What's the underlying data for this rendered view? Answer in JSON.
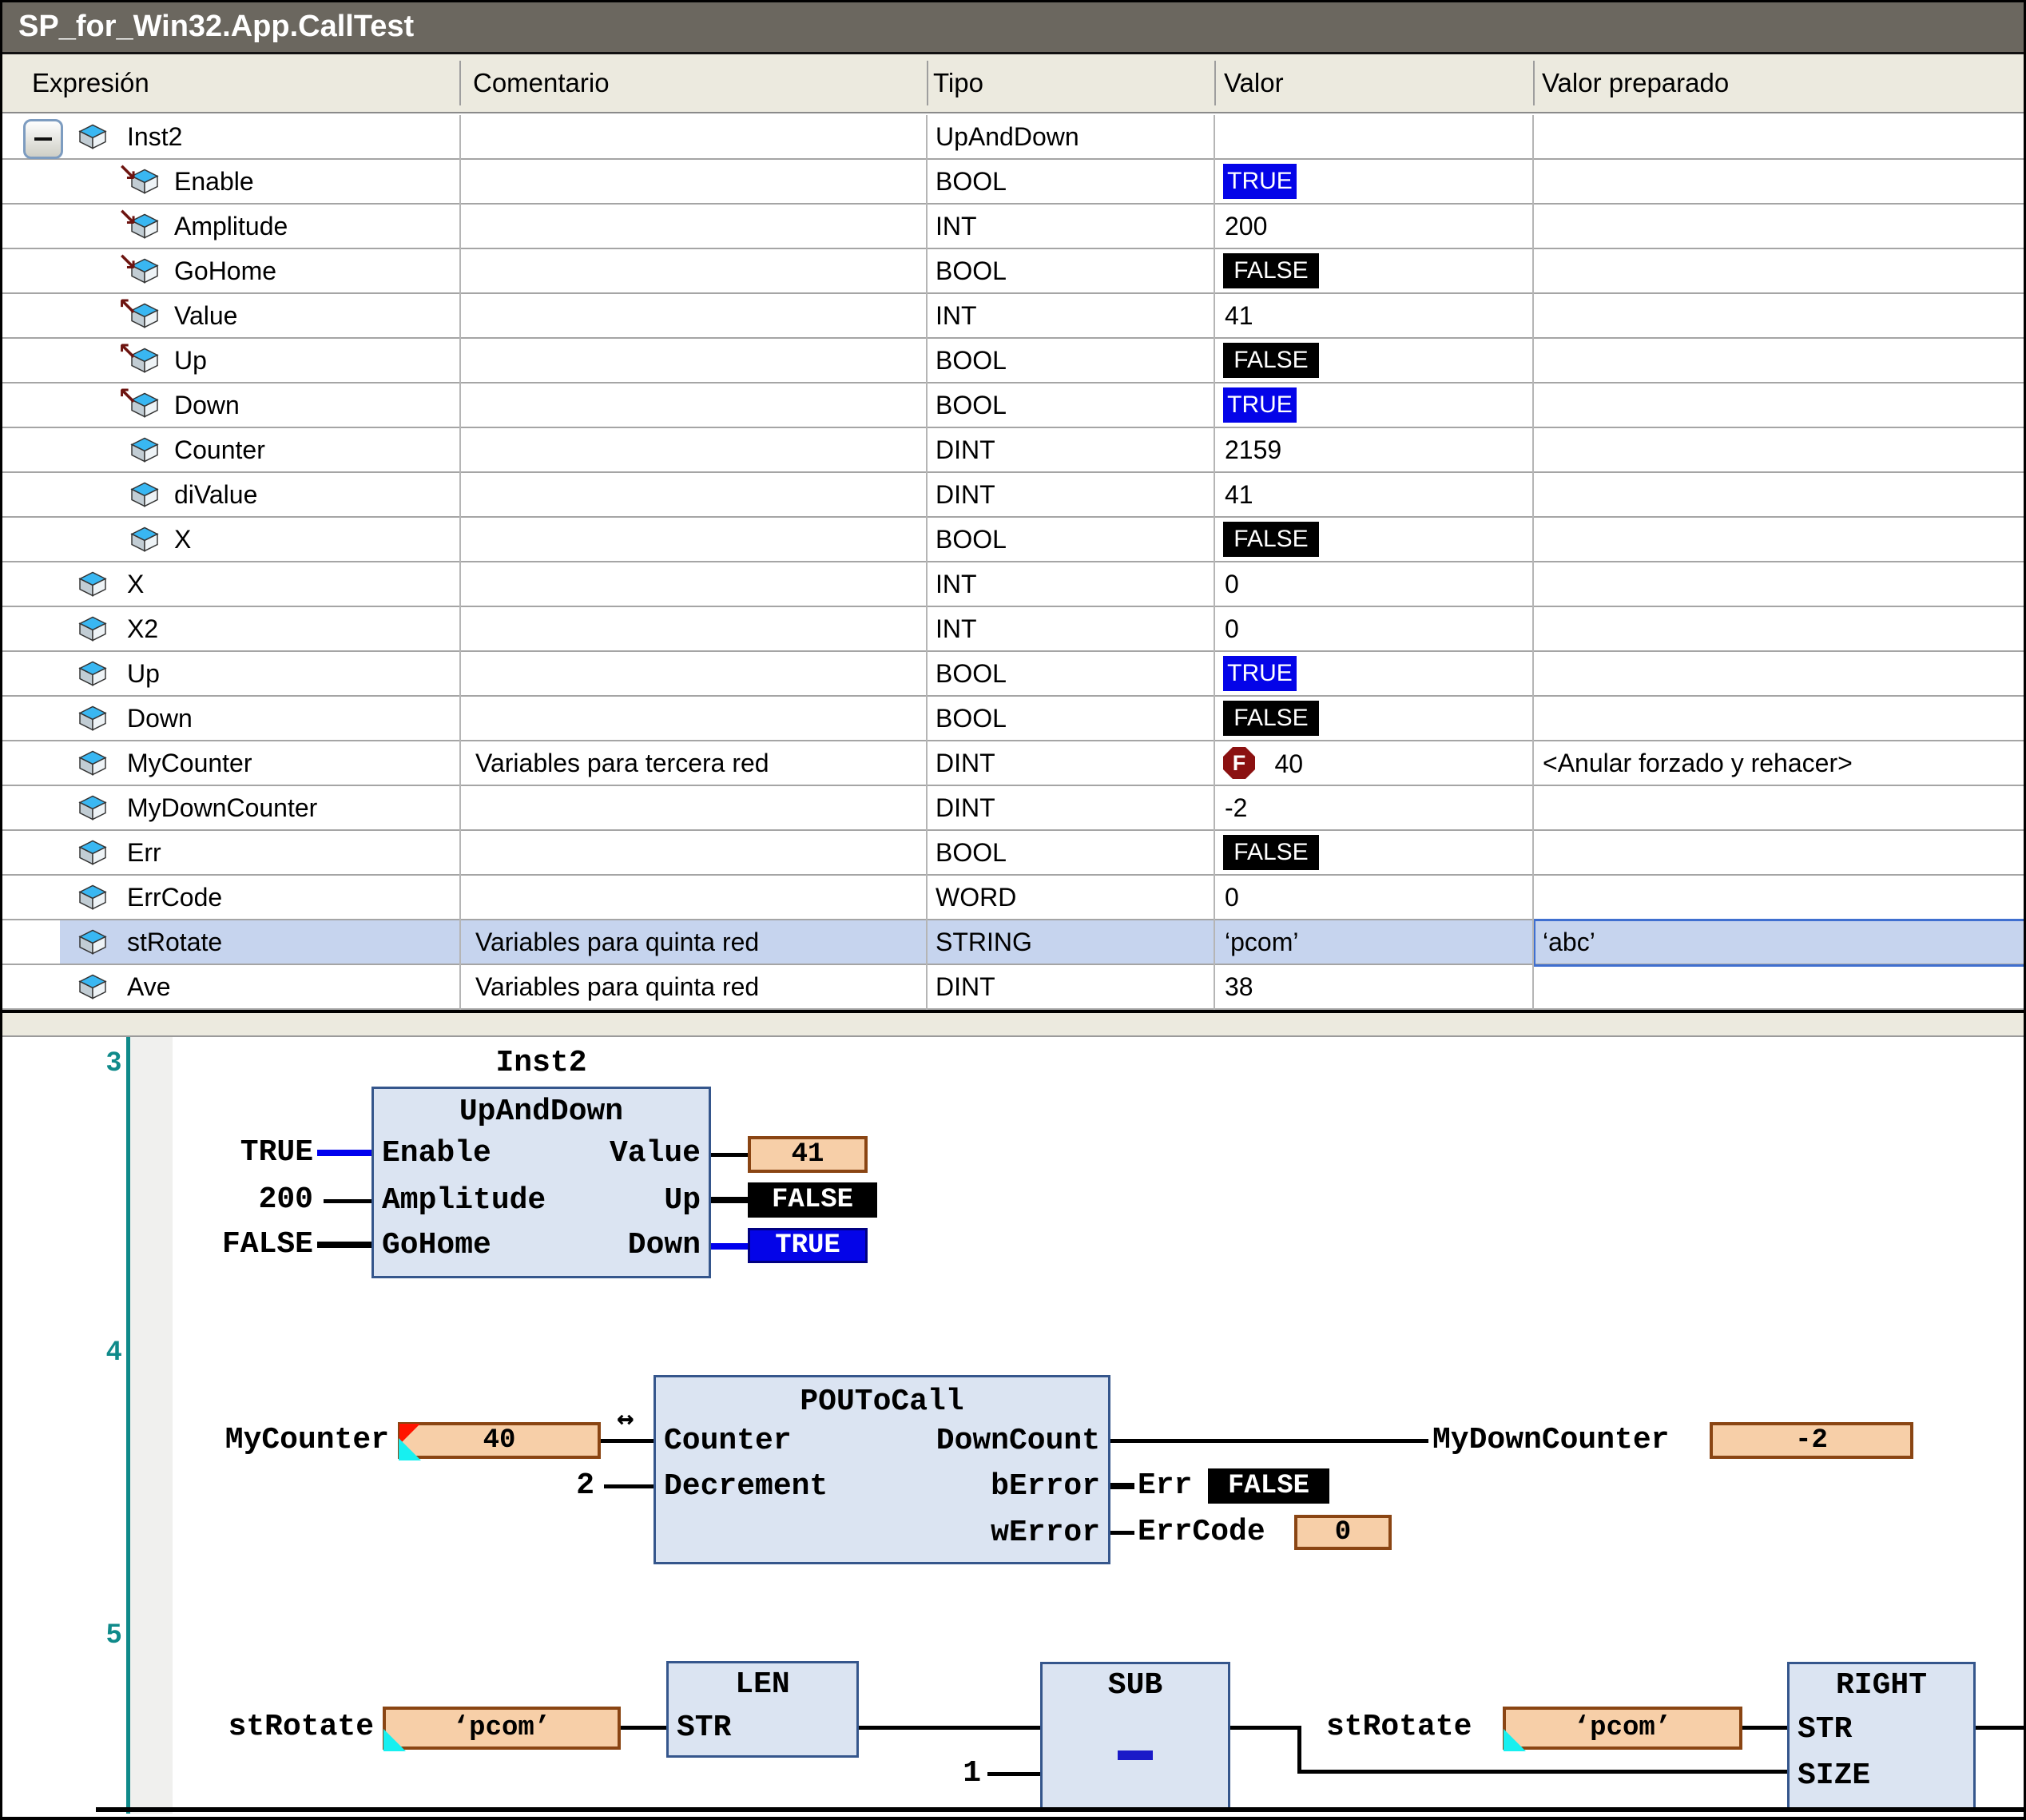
{
  "window": {
    "title": "SP_for_Win32.App.CallTest"
  },
  "badges": {
    "force": "F"
  },
  "table": {
    "columns": [
      "Expresión",
      "Comentario",
      "Tipo",
      "Valor",
      "Valor preparado"
    ],
    "rows": [
      {
        "name": "Inst2",
        "level": 0,
        "expander": true,
        "arrow": "",
        "comment": "",
        "type": "UpAndDown",
        "value": "",
        "vstyle": "none",
        "prepared": "",
        "selected": false
      },
      {
        "name": "Enable",
        "level": 1,
        "expander": false,
        "arrow": "in",
        "comment": "",
        "type": "BOOL",
        "value": "TRUE",
        "vstyle": "true",
        "prepared": "",
        "selected": false
      },
      {
        "name": "Amplitude",
        "level": 1,
        "expander": false,
        "arrow": "in",
        "comment": "",
        "type": "INT",
        "value": "200",
        "vstyle": "plain",
        "prepared": "",
        "selected": false
      },
      {
        "name": "GoHome",
        "level": 1,
        "expander": false,
        "arrow": "in",
        "comment": "",
        "type": "BOOL",
        "value": "FALSE",
        "vstyle": "false",
        "prepared": "",
        "selected": false
      },
      {
        "name": "Value",
        "level": 1,
        "expander": false,
        "arrow": "out",
        "comment": "",
        "type": "INT",
        "value": "41",
        "vstyle": "plain",
        "prepared": "",
        "selected": false
      },
      {
        "name": "Up",
        "level": 1,
        "expander": false,
        "arrow": "out",
        "comment": "",
        "type": "BOOL",
        "value": "FALSE",
        "vstyle": "false",
        "prepared": "",
        "selected": false
      },
      {
        "name": "Down",
        "level": 1,
        "expander": false,
        "arrow": "out",
        "comment": "",
        "type": "BOOL",
        "value": "TRUE",
        "vstyle": "true",
        "prepared": "",
        "selected": false
      },
      {
        "name": "Counter",
        "level": 1,
        "expander": false,
        "arrow": "",
        "comment": "",
        "type": "DINT",
        "value": "2159",
        "vstyle": "plain",
        "prepared": "",
        "selected": false
      },
      {
        "name": "diValue",
        "level": 1,
        "expander": false,
        "arrow": "",
        "comment": "",
        "type": "DINT",
        "value": "41",
        "vstyle": "plain",
        "prepared": "",
        "selected": false
      },
      {
        "name": "X",
        "level": 1,
        "expander": false,
        "arrow": "",
        "comment": "",
        "type": "BOOL",
        "value": "FALSE",
        "vstyle": "false",
        "prepared": "",
        "selected": false
      },
      {
        "name": "X",
        "level": 0,
        "expander": false,
        "arrow": "",
        "comment": "",
        "type": "INT",
        "value": "0",
        "vstyle": "plain",
        "prepared": "",
        "selected": false
      },
      {
        "name": "X2",
        "level": 0,
        "expander": false,
        "arrow": "",
        "comment": "",
        "type": "INT",
        "value": "0",
        "vstyle": "plain",
        "prepared": "",
        "selected": false
      },
      {
        "name": "Up",
        "level": 0,
        "expander": false,
        "arrow": "",
        "comment": "",
        "type": "BOOL",
        "value": "TRUE",
        "vstyle": "true",
        "prepared": "",
        "selected": false
      },
      {
        "name": "Down",
        "level": 0,
        "expander": false,
        "arrow": "",
        "comment": "",
        "type": "BOOL",
        "value": "FALSE",
        "vstyle": "false",
        "prepared": "",
        "selected": false
      },
      {
        "name": "MyCounter",
        "level": 0,
        "expander": false,
        "arrow": "",
        "comment": "Variables para tercera red",
        "type": "DINT",
        "value": "40",
        "vstyle": "forced",
        "prepared": "<Anular forzado y rehacer>",
        "selected": false
      },
      {
        "name": "MyDownCounter",
        "level": 0,
        "expander": false,
        "arrow": "",
        "comment": "",
        "type": "DINT",
        "value": "-2",
        "vstyle": "plain",
        "prepared": "",
        "selected": false
      },
      {
        "name": "Err",
        "level": 0,
        "expander": false,
        "arrow": "",
        "comment": "",
        "type": "BOOL",
        "value": "FALSE",
        "vstyle": "false",
        "prepared": "",
        "selected": false
      },
      {
        "name": "ErrCode",
        "level": 0,
        "expander": false,
        "arrow": "",
        "comment": "",
        "type": "WORD",
        "value": "0",
        "vstyle": "plain",
        "prepared": "",
        "selected": false
      },
      {
        "name": "stRotate",
        "level": 0,
        "expander": false,
        "arrow": "",
        "comment": "Variables para quinta red",
        "type": "STRING",
        "value": "‘pcom’",
        "vstyle": "plain",
        "prepared": "‘abc’",
        "selected": true
      },
      {
        "name": "Ave",
        "level": 0,
        "expander": false,
        "arrow": "",
        "comment": "Variables para quinta red",
        "type": "DINT",
        "value": "38",
        "vstyle": "plain",
        "prepared": "",
        "selected": false
      }
    ]
  },
  "fbd": {
    "net3": {
      "number": "3",
      "instance": "Inst2",
      "block": "UpAndDown",
      "pins_left": [
        "Enable",
        "Amplitude",
        "GoHome"
      ],
      "pins_right": [
        "Value",
        "Up",
        "Down"
      ],
      "inputs": [
        "TRUE",
        "200",
        "FALSE"
      ],
      "out_value": "41",
      "out_up": "FALSE",
      "out_down": "TRUE"
    },
    "net4": {
      "number": "4",
      "block": "POUToCall",
      "pins_left": [
        "Counter",
        "Decrement"
      ],
      "pins_right": [
        "DownCount",
        "bError",
        "wError"
      ],
      "inout_mark": "↔",
      "in1_label": "MyCounter",
      "in1_value": "40",
      "in2": "2",
      "out1_label": "MyDownCounter",
      "out1_value": "-2",
      "out2_label": "Err",
      "out2_value": "FALSE",
      "out3_label": "ErrCode",
      "out3_value": "0"
    },
    "net5": {
      "number": "5",
      "in1_label": "stRotate",
      "in1_value": "‘pcom’",
      "len": {
        "title": "LEN",
        "pin": "STR"
      },
      "sub": {
        "title": "SUB",
        "in2": "1",
        "op": "-"
      },
      "in2_label": "stRotate",
      "in2_value": "‘pcom’",
      "right": {
        "title": "RIGHT",
        "pin1": "STR",
        "pin2": "SIZE"
      }
    }
  },
  "colors": {
    "title_bar": "#6b675f",
    "header_bg": "#eceadf",
    "selection": "#c6d4ee",
    "true_bg": "#0404e8",
    "false_bg": "#000000",
    "forced_badge": "#8b1111",
    "block_fill": "#dbe4f2",
    "block_border": "#35568c",
    "value_box_fill": "#f7cfa8",
    "value_box_border": "#8a4513",
    "network_accent": "#0f8a8a",
    "wire_blue": "#0000ee",
    "force_marker_red": "#ff1400",
    "force_marker_cyan": "#17f0f0"
  }
}
